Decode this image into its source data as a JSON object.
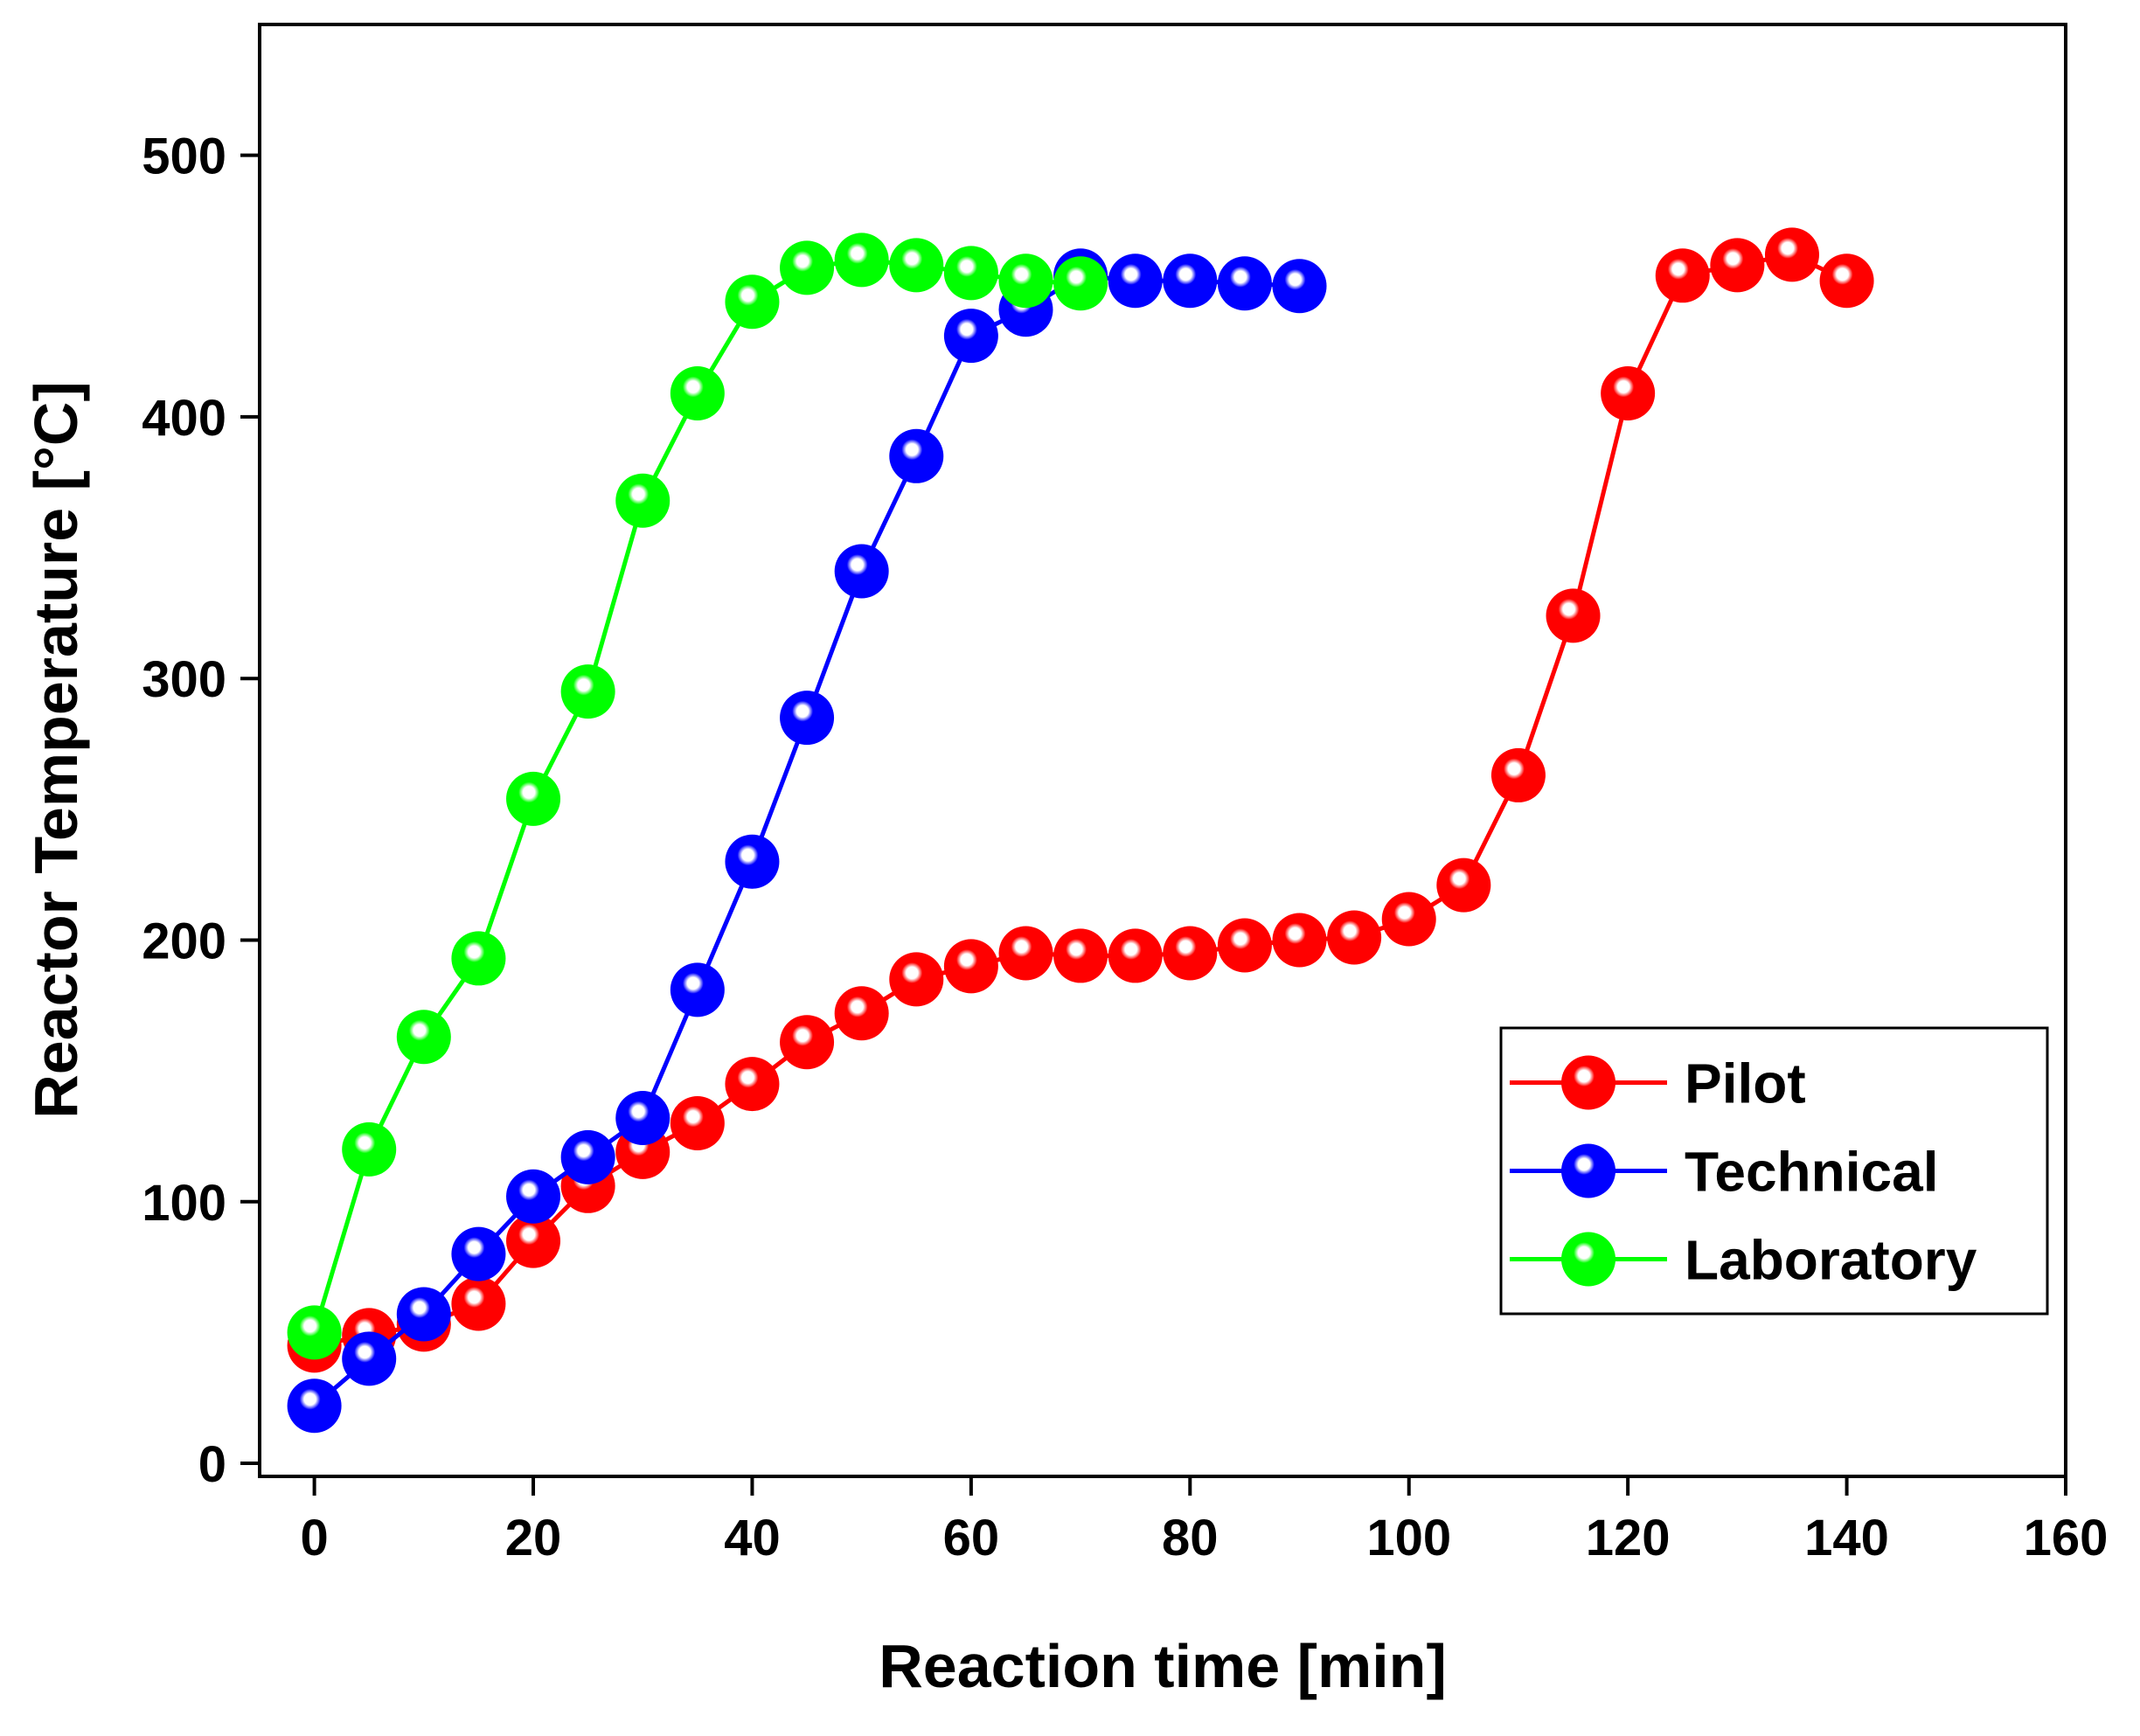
{
  "chart_data": {
    "type": "line",
    "xlabel": "Reaction time [min]",
    "ylabel": "Reactor Temperature [°C]",
    "xlim": [
      -5,
      160
    ],
    "ylim": [
      -5,
      550
    ],
    "xticks": [
      0,
      20,
      40,
      60,
      80,
      100,
      120,
      140,
      160
    ],
    "yticks": [
      0,
      100,
      200,
      300,
      400,
      500
    ],
    "legend": "lower right",
    "grid": false,
    "series": [
      {
        "name": "Pilot",
        "color": "#ff0000",
        "x": [
          0,
          5,
          10,
          15,
          20,
          25,
          30,
          35,
          40,
          45,
          50,
          55,
          60,
          65,
          70,
          75,
          80,
          85,
          90,
          95,
          100,
          105,
          110,
          115,
          120,
          125,
          130,
          135,
          140
        ],
        "values": [
          45,
          49,
          53,
          61,
          85,
          106,
          119,
          130,
          145,
          161,
          172,
          185,
          190,
          195,
          194,
          194,
          195,
          198,
          200,
          201,
          208,
          221,
          263,
          324,
          409,
          454,
          458,
          462,
          452
        ]
      },
      {
        "name": "Technical",
        "color": "#0000ff",
        "x": [
          0,
          5,
          10,
          15,
          20,
          25,
          30,
          35,
          40,
          45,
          50,
          55,
          60,
          65,
          70,
          75,
          80,
          85,
          90
        ],
        "values": [
          22,
          40,
          57,
          80,
          102,
          117,
          132,
          181,
          230,
          285,
          341,
          385,
          431,
          441,
          454,
          452,
          452,
          451,
          450
        ]
      },
      {
        "name": "Laboratory",
        "color": "#00ff00",
        "x": [
          0,
          5,
          10,
          15,
          20,
          25,
          30,
          35,
          40,
          45,
          50,
          55,
          60,
          65,
          70
        ],
        "values": [
          50,
          120,
          163,
          193,
          254,
          295,
          368,
          409,
          444,
          457,
          460,
          458,
          455,
          452,
          451
        ]
      }
    ]
  }
}
